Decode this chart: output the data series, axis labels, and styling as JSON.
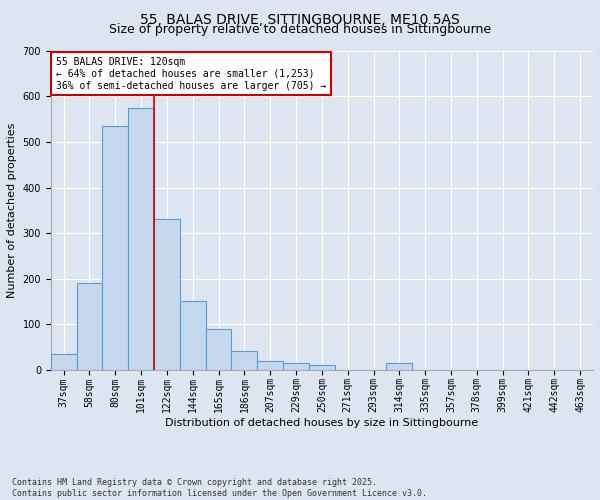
{
  "title1": "55, BALAS DRIVE, SITTINGBOURNE, ME10 5AS",
  "title2": "Size of property relative to detached houses in Sittingbourne",
  "xlabel": "Distribution of detached houses by size in Sittingbourne",
  "ylabel": "Number of detached properties",
  "categories": [
    "37sqm",
    "58sqm",
    "80sqm",
    "101sqm",
    "122sqm",
    "144sqm",
    "165sqm",
    "186sqm",
    "207sqm",
    "229sqm",
    "250sqm",
    "271sqm",
    "293sqm",
    "314sqm",
    "335sqm",
    "357sqm",
    "378sqm",
    "399sqm",
    "421sqm",
    "442sqm",
    "463sqm"
  ],
  "values": [
    35,
    190,
    535,
    575,
    330,
    150,
    90,
    40,
    20,
    15,
    10,
    0,
    0,
    15,
    0,
    0,
    0,
    0,
    0,
    0,
    0
  ],
  "bar_color": "#c5d8ed",
  "bar_edge_color": "#5b9bd5",
  "vline_x_index": 3,
  "vline_color": "#cc0000",
  "annotation_text": "55 BALAS DRIVE: 120sqm\n← 64% of detached houses are smaller (1,253)\n36% of semi-detached houses are larger (705) →",
  "annotation_box_color": "#ffffff",
  "annotation_box_edge": "#cc0000",
  "ylim": [
    0,
    700
  ],
  "yticks": [
    0,
    100,
    200,
    300,
    400,
    500,
    600,
    700
  ],
  "background_color": "#dde6f0",
  "plot_background": "#dde6f0",
  "footer_line1": "Contains HM Land Registry data © Crown copyright and database right 2025.",
  "footer_line2": "Contains public sector information licensed under the Open Government Licence v3.0.",
  "title_fontsize": 10,
  "subtitle_fontsize": 9,
  "axis_label_fontsize": 8,
  "tick_fontsize": 7,
  "annotation_fontsize": 7,
  "footer_fontsize": 6
}
